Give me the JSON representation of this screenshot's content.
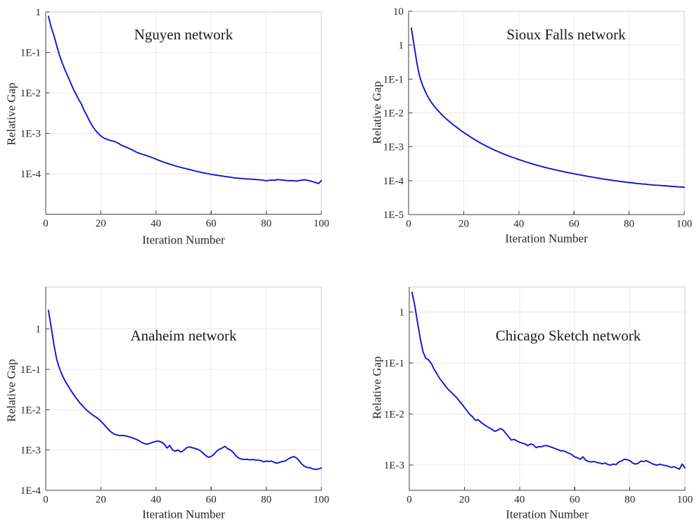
{
  "style": {
    "background": "#ffffff",
    "grid_color": "#e9e9e9",
    "box_color": "#cccccc",
    "axis_color": "#3f3f3f",
    "text_color": "#262626",
    "line_color": "#1212d2"
  },
  "chart_data": [
    {
      "type": "line",
      "title": "Nguyen network",
      "xlabel": "Iteration Number",
      "ylabel": "Relative Gap",
      "legend": "none",
      "grid": true,
      "y_scale": "log",
      "xlim": [
        0,
        100
      ],
      "ylim": [
        1e-05,
        1
      ],
      "x_ticks": [
        0,
        20,
        40,
        60,
        80,
        100
      ],
      "x_tick_labels": [
        "0",
        "20",
        "40",
        "60",
        "80",
        "100"
      ],
      "y_ticks": [
        {
          "value": 1,
          "label": "1"
        },
        {
          "value": 0.1,
          "label": "1E-1"
        },
        {
          "value": 0.01,
          "label": "1E-2"
        },
        {
          "value": 0.001,
          "label": "1E-3"
        },
        {
          "value": 0.0001,
          "label": "1E-4"
        }
      ],
      "x_start": 1,
      "x_step": 1,
      "values": [
        0.78,
        0.42,
        0.26,
        0.145,
        0.085,
        0.055,
        0.037,
        0.026,
        0.018,
        0.0125,
        0.0092,
        0.0068,
        0.0052,
        0.0036,
        0.0027,
        0.00195,
        0.0015,
        0.0012,
        0.001,
        0.00086,
        0.00077,
        0.00072,
        0.00068,
        0.00065,
        0.00063,
        0.00058,
        0.00053,
        0.00049,
        0.00046,
        0.00043,
        0.0004,
        0.00037,
        0.00034,
        0.00032,
        0.000305,
        0.00029,
        0.000275,
        0.00026,
        0.000245,
        0.00023,
        0.000215,
        0.000203,
        0.000192,
        0.000182,
        0.000173,
        0.000165,
        0.000157,
        0.00015,
        0.000144,
        0.000138,
        0.000133,
        0.000128,
        0.000123,
        0.000118,
        0.000114,
        0.00011,
        0.000106,
        0.000103,
        0.0001,
        9.7e-05,
        9.45e-05,
        9.2e-05,
        9e-05,
        8.8e-05,
        8.6e-05,
        8.4e-05,
        8.2e-05,
        8e-05,
        7.85e-05,
        7.75e-05,
        7.65e-05,
        7.55e-05,
        7.45e-05,
        7.38e-05,
        7.3e-05,
        7.22e-05,
        7.14e-05,
        7.06e-05,
        6.9e-05,
        6.72e-05,
        6.9e-05,
        7e-05,
        6.88e-05,
        7.2e-05,
        7.1e-05,
        6.95e-05,
        6.85e-05,
        6.72e-05,
        6.78e-05,
        6.7e-05,
        6.62e-05,
        6.8e-05,
        7e-05,
        7.1e-05,
        6.9e-05,
        6.62e-05,
        6.35e-05,
        6.05e-05,
        5.72e-05,
        6.8e-05
      ]
    },
    {
      "type": "line",
      "title": "Sioux Falls network",
      "xlabel": "Iteration Number",
      "ylabel": "Relative Gap",
      "legend": "none",
      "grid": true,
      "y_scale": "log",
      "xlim": [
        0,
        100
      ],
      "ylim": [
        1e-05,
        10
      ],
      "x_ticks": [
        0,
        20,
        40,
        60,
        80,
        100
      ],
      "x_tick_labels": [
        "0",
        "20",
        "40",
        "60",
        "80",
        "100"
      ],
      "y_ticks": [
        {
          "value": 10,
          "label": "10"
        },
        {
          "value": 1,
          "label": "1"
        },
        {
          "value": 0.1,
          "label": "1E-1"
        },
        {
          "value": 0.01,
          "label": "1E-2"
        },
        {
          "value": 0.001,
          "label": "1E-3"
        },
        {
          "value": 0.0001,
          "label": "1E-4"
        },
        {
          "value": 1e-05,
          "label": "1E-5"
        }
      ],
      "x_start": 1,
      "x_step": 1,
      "values": [
        3.2,
        1.0,
        0.3,
        0.12,
        0.068,
        0.044,
        0.03,
        0.022,
        0.017,
        0.0135,
        0.011,
        0.009,
        0.0075,
        0.0063,
        0.0054,
        0.0046,
        0.004,
        0.0035,
        0.003,
        0.00265,
        0.00235,
        0.00207,
        0.00183,
        0.00163,
        0.00146,
        0.00131,
        0.00118,
        0.00107,
        0.00097,
        0.00089,
        0.00081,
        0.00075,
        0.00069,
        0.00064,
        0.00059,
        0.00055,
        0.00051,
        0.00048,
        0.00045,
        0.00042,
        0.000395,
        0.000372,
        0.00035,
        0.00033,
        0.000312,
        0.000295,
        0.00028,
        0.000266,
        0.000253,
        0.000241,
        0.00023,
        0.00022,
        0.000211,
        0.000202,
        0.000194,
        0.000186,
        0.000179,
        0.000172,
        0.000166,
        0.00016,
        0.000154,
        0.000149,
        0.000144,
        0.000139,
        0.000134,
        0.00013,
        0.000126,
        0.000122,
        0.000118,
        0.000114,
        0.000111,
        0.000108,
        0.000105,
        0.000102,
        9.95e-05,
        9.7e-05,
        9.45e-05,
        9.22e-05,
        9e-05,
        8.8e-05,
        8.7e-05,
        8.45e-05,
        8.2e-05,
        8.12e-05,
        7.97e-05,
        7.9e-05,
        7.7e-05,
        7.57e-05,
        7.42e-05,
        7.34e-05,
        7.3e-05,
        7.13e-05,
        7.1e-05,
        6.94e-05,
        6.85e-05,
        6.7e-05,
        6.72e-05,
        6.55e-05,
        6.48e-05,
        6.4e-05
      ]
    },
    {
      "type": "line",
      "title": "Anaheim network",
      "xlabel": "Iteration Number",
      "ylabel": "Relative Gap",
      "legend": "none",
      "grid": true,
      "y_scale": "log",
      "xlim": [
        0,
        100
      ],
      "ylim": [
        0.0001,
        11
      ],
      "x_ticks": [
        0,
        20,
        40,
        60,
        80,
        100
      ],
      "x_tick_labels": [
        "0",
        "20",
        "40",
        "60",
        "80",
        "100"
      ],
      "y_ticks": [
        {
          "value": 1,
          "label": "1"
        },
        {
          "value": 0.1,
          "label": "1E-1"
        },
        {
          "value": 0.01,
          "label": "1E-2"
        },
        {
          "value": 0.001,
          "label": "1E-3"
        },
        {
          "value": 0.0001,
          "label": "1E-4"
        }
      ],
      "x_start": 1,
      "x_step": 1,
      "values": [
        2.9,
        1.1,
        0.4,
        0.175,
        0.105,
        0.072,
        0.052,
        0.04,
        0.031,
        0.0245,
        0.0195,
        0.016,
        0.0132,
        0.0112,
        0.0096,
        0.0084,
        0.0074,
        0.0067,
        0.006,
        0.0052,
        0.0044,
        0.0037,
        0.0031,
        0.0027,
        0.00245,
        0.00235,
        0.00228,
        0.0023,
        0.00224,
        0.00215,
        0.00205,
        0.00193,
        0.00182,
        0.00168,
        0.00152,
        0.00143,
        0.0014,
        0.00148,
        0.00157,
        0.00164,
        0.00166,
        0.00157,
        0.0014,
        0.00112,
        0.0013,
        0.001,
        0.00093,
        0.00101,
        0.00089,
        0.00097,
        0.00112,
        0.0012,
        0.00115,
        0.0011,
        0.00105,
        0.00097,
        0.00085,
        0.00073,
        0.00066,
        0.00069,
        0.00078,
        0.00093,
        0.00105,
        0.00112,
        0.00124,
        0.00108,
        0.001,
        0.00088,
        0.00072,
        0.00063,
        0.0006,
        0.00058,
        0.00059,
        0.00057,
        0.00058,
        0.00057,
        0.00056,
        0.00055,
        0.00051,
        0.00053,
        0.00052,
        0.00053,
        0.00049,
        0.00047,
        0.0005,
        0.00052,
        0.00054,
        0.0006,
        0.00065,
        0.00069,
        0.00063,
        0.00054,
        0.00044,
        0.00039,
        0.00037,
        0.00036,
        0.00034,
        0.00033,
        0.00034,
        0.00036
      ]
    },
    {
      "type": "line",
      "title": "Chicago Sketch network",
      "xlabel": "Iteration Number",
      "ylabel": "Relative Gap",
      "legend": "none",
      "grid": true,
      "y_scale": "log",
      "xlim": [
        0,
        100
      ],
      "ylim": [
        0.00032,
        3.1
      ],
      "x_ticks": [
        0,
        20,
        40,
        60,
        80,
        100
      ],
      "x_tick_labels": [
        "0",
        "20",
        "40",
        "60",
        "80",
        "100"
      ],
      "y_ticks": [
        {
          "value": 1,
          "label": "1"
        },
        {
          "value": 0.1,
          "label": "1E-1"
        },
        {
          "value": 0.01,
          "label": "1E-2"
        },
        {
          "value": 0.001,
          "label": "1E-3"
        }
      ],
      "x_start": 1,
      "x_step": 1,
      "values": [
        2.45,
        1.35,
        0.62,
        0.3,
        0.165,
        0.125,
        0.115,
        0.098,
        0.076,
        0.062,
        0.05,
        0.043,
        0.036,
        0.031,
        0.0275,
        0.0245,
        0.0215,
        0.0185,
        0.016,
        0.0135,
        0.0115,
        0.0098,
        0.0088,
        0.0075,
        0.0078,
        0.0069,
        0.0063,
        0.0058,
        0.0054,
        0.005,
        0.0046,
        0.0048,
        0.0052,
        0.0049,
        0.0042,
        0.0036,
        0.0031,
        0.0032,
        0.003,
        0.0028,
        0.0027,
        0.0026,
        0.0024,
        0.0026,
        0.0025,
        0.0022,
        0.0023,
        0.0023,
        0.0024,
        0.0024,
        0.0023,
        0.0022,
        0.0021,
        0.002,
        0.0019,
        0.0019,
        0.0018,
        0.0017,
        0.0016,
        0.00145,
        0.0014,
        0.0013,
        0.00145,
        0.00125,
        0.00118,
        0.00115,
        0.00118,
        0.00113,
        0.0011,
        0.00106,
        0.0011,
        0.00103,
        0.001,
        0.00105,
        0.00102,
        0.00115,
        0.0012,
        0.0013,
        0.00128,
        0.00122,
        0.0011,
        0.00105,
        0.00108,
        0.0012,
        0.00118,
        0.00122,
        0.00115,
        0.00108,
        0.00102,
        0.001,
        0.00104,
        0.001,
        0.00098,
        0.00095,
        0.0009,
        0.00093,
        0.00088,
        0.00083,
        0.00105,
        0.00088
      ]
    }
  ]
}
